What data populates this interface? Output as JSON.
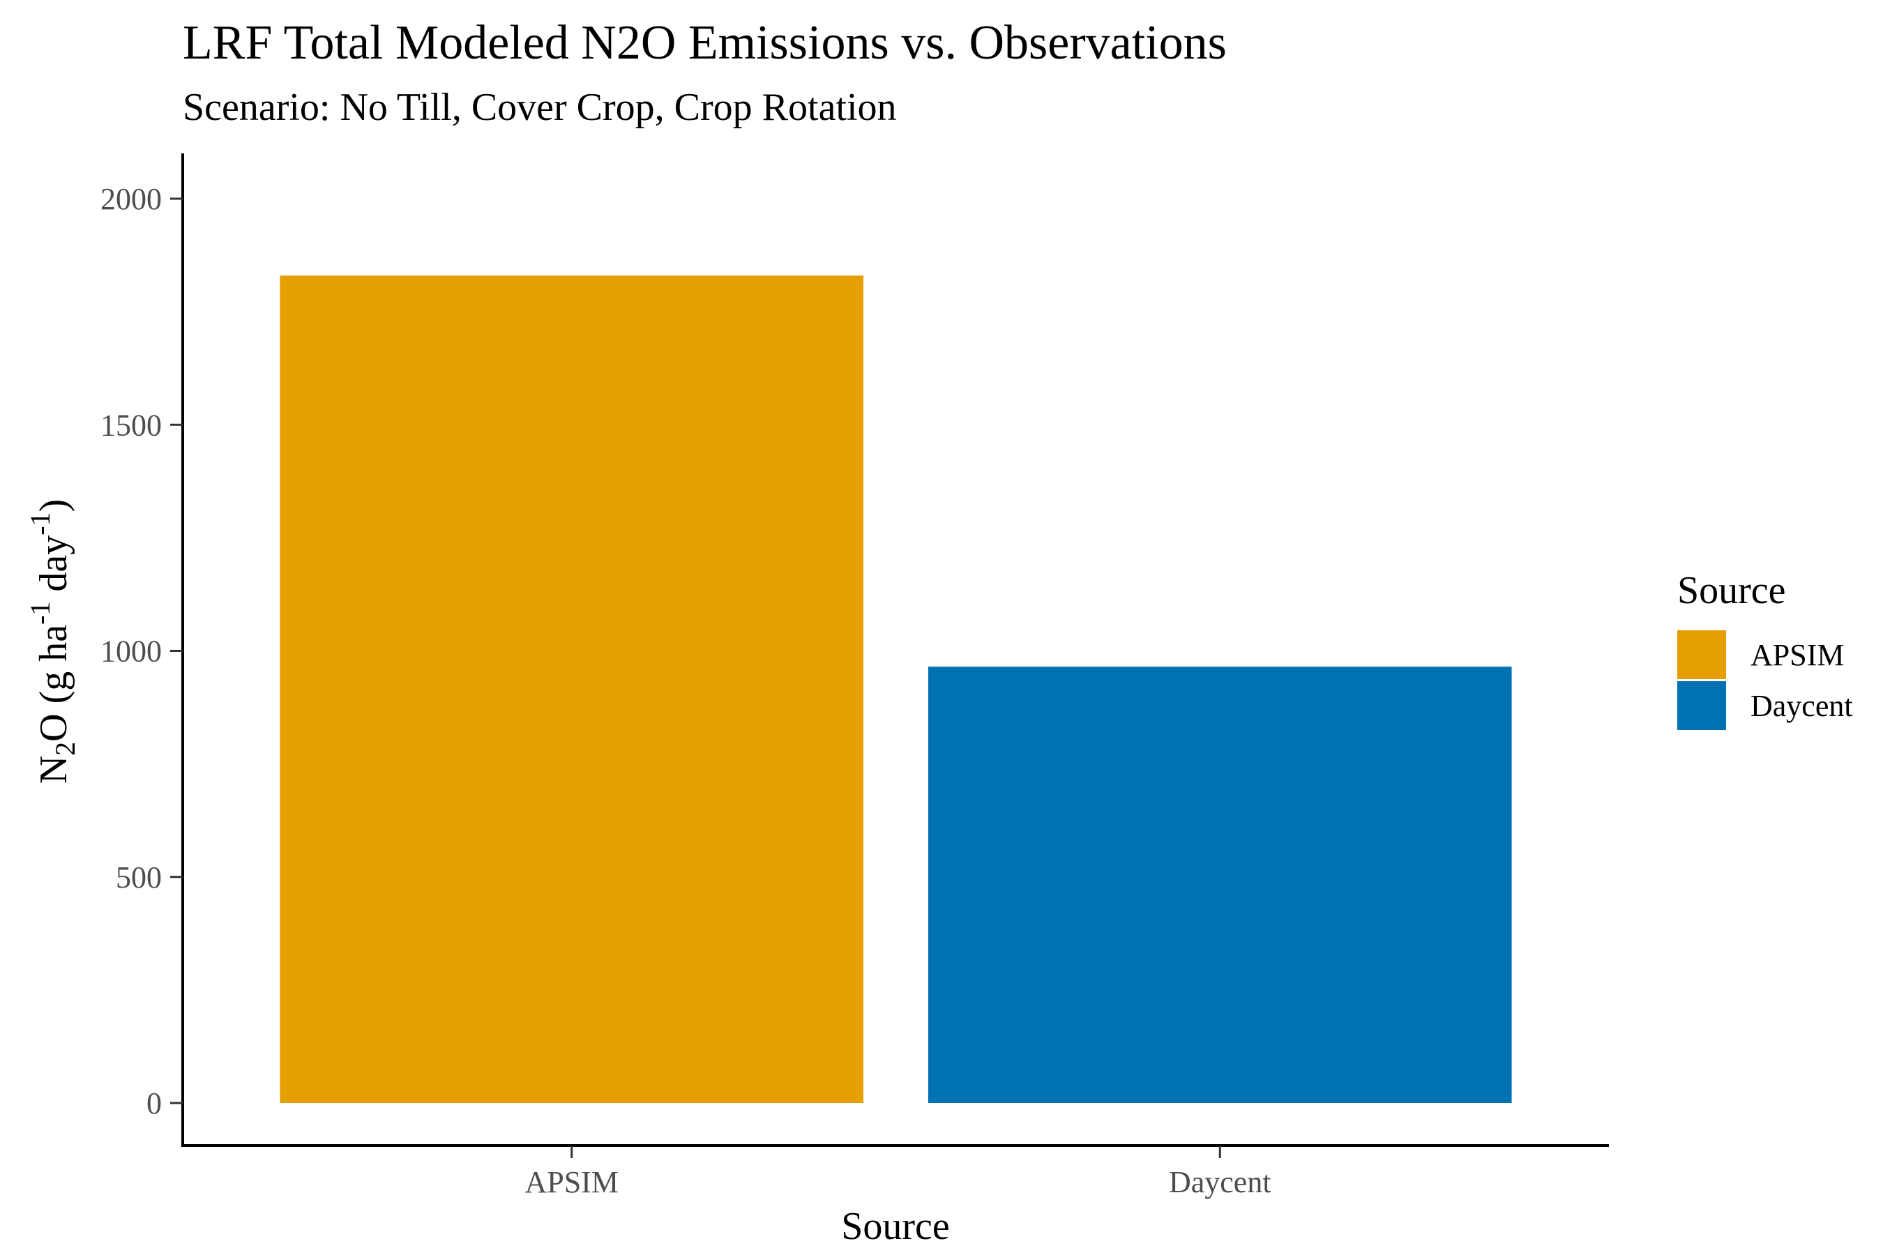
{
  "chart_data": {
    "type": "bar",
    "title": "LRF Total Modeled N2O Emissions vs. Observations",
    "subtitle": "Scenario: No Till, Cover Crop, Crop Rotation",
    "xlabel": "Source",
    "ylabel": {
      "base": "N",
      "sub": "2",
      "rest1": "O (g ha",
      "sup1": "-1",
      "rest2": " day",
      "sup2": "-1",
      "rest3": ")"
    },
    "categories": [
      "APSIM",
      "Daycent"
    ],
    "values": [
      1830,
      965
    ],
    "colors": [
      "#E69F00",
      "#0072B2"
    ],
    "ylim": [
      0,
      2100
    ],
    "yticks": [
      0,
      500,
      1000,
      1500,
      2000
    ],
    "legend": {
      "title": "Source",
      "entries": [
        "APSIM",
        "Daycent"
      ],
      "placement": "right"
    },
    "grid": false
  }
}
